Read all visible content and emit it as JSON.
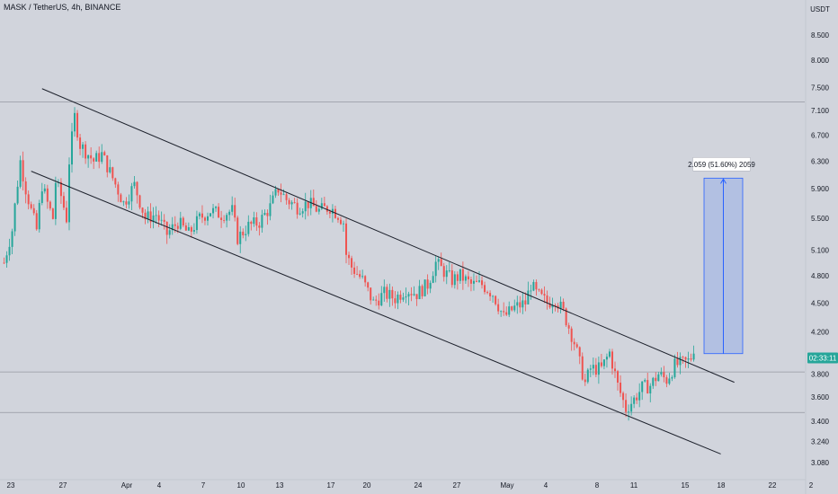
{
  "header": {
    "title": "MASK / TetherUS, 4h, BINANCE"
  },
  "colors": {
    "background": "#d1d4dc",
    "up": "#26a69a",
    "down": "#ef5350",
    "line": "#1e222d",
    "measure_fill": "#9db3e6",
    "measure_stroke": "#2962ff",
    "price_tag": "#26a69a"
  },
  "chart_data": {
    "type": "candlestick",
    "title": "MASK / TetherUS, 4h, BINANCE",
    "y_unit_label": "USDT",
    "y_scale": "log",
    "ylim": [
      3.0,
      9.0
    ],
    "y_ticks": [
      "8.500",
      "8.000",
      "7.500",
      "7.100",
      "6.700",
      "6.300",
      "5.900",
      "5.500",
      "5.100",
      "4.800",
      "4.500",
      "4.200",
      "3.800",
      "3.600",
      "3.400",
      "3.240",
      "3.080"
    ],
    "x_ticks": [
      "23",
      "27",
      "Apr",
      "4",
      "7",
      "10",
      "13",
      "17",
      "20",
      "24",
      "27",
      "May",
      "4",
      "8",
      "11",
      "15",
      "18",
      "22",
      "2"
    ],
    "current_price_label": "02:33:11",
    "current_price": 3.95,
    "horizontal_levels": [
      7.25,
      3.82,
      3.47
    ],
    "channel": {
      "upper": [
        {
          "bar": 14,
          "price": 7.48
        },
        {
          "bar": 260,
          "price": 3.82
        }
      ],
      "lower": [
        {
          "bar": 10,
          "price": 6.15
        },
        {
          "bar": 255,
          "price": 3.22
        }
      ]
    },
    "projection": {
      "label": "2.059 (51.60%) 2059",
      "from_price": 3.99,
      "to_price": 6.05,
      "change": 2.059,
      "percent": "51.60%"
    },
    "price_path": [
      [
        0,
        4.95
      ],
      [
        3,
        5.35
      ],
      [
        6,
        6.3
      ],
      [
        8,
        5.9
      ],
      [
        10,
        5.6
      ],
      [
        12,
        5.35
      ],
      [
        14,
        5.95
      ],
      [
        16,
        5.7
      ],
      [
        18,
        5.5
      ],
      [
        19,
        6.0
      ],
      [
        21,
        5.8
      ],
      [
        23,
        5.5
      ],
      [
        24,
        6.3
      ],
      [
        26,
        7.0
      ],
      [
        28,
        6.55
      ],
      [
        30,
        6.45
      ],
      [
        33,
        6.3
      ],
      [
        36,
        6.4
      ],
      [
        40,
        6.05
      ],
      [
        44,
        5.7
      ],
      [
        48,
        5.95
      ],
      [
        52,
        5.5
      ],
      [
        56,
        5.55
      ],
      [
        60,
        5.3
      ],
      [
        64,
        5.45
      ],
      [
        68,
        5.3
      ],
      [
        72,
        5.5
      ],
      [
        76,
        5.6
      ],
      [
        80,
        5.55
      ],
      [
        84,
        5.6
      ],
      [
        86,
        5.25
      ],
      [
        90,
        5.4
      ],
      [
        94,
        5.45
      ],
      [
        98,
        5.65
      ],
      [
        101,
        5.9
      ],
      [
        104,
        5.75
      ],
      [
        108,
        5.65
      ],
      [
        112,
        5.7
      ],
      [
        116,
        5.6
      ],
      [
        120,
        5.65
      ],
      [
        123,
        5.55
      ],
      [
        125,
        5.45
      ],
      [
        126,
        5.05
      ],
      [
        128,
        4.9
      ],
      [
        132,
        4.75
      ],
      [
        136,
        4.5
      ],
      [
        140,
        4.6
      ],
      [
        144,
        4.55
      ],
      [
        148,
        4.65
      ],
      [
        152,
        4.6
      ],
      [
        156,
        4.7
      ],
      [
        159,
        4.95
      ],
      [
        162,
        4.85
      ],
      [
        165,
        4.75
      ],
      [
        168,
        4.8
      ],
      [
        172,
        4.7
      ],
      [
        176,
        4.7
      ],
      [
        180,
        4.6
      ],
      [
        184,
        4.35
      ],
      [
        188,
        4.45
      ],
      [
        192,
        4.5
      ],
      [
        194,
        4.7
      ],
      [
        196,
        4.6
      ],
      [
        200,
        4.5
      ],
      [
        203,
        4.55
      ],
      [
        206,
        4.4
      ],
      [
        210,
        4.1
      ],
      [
        212,
        3.9
      ],
      [
        214,
        3.72
      ],
      [
        216,
        3.85
      ],
      [
        220,
        3.85
      ],
      [
        223,
        4.0
      ],
      [
        226,
        3.7
      ],
      [
        229,
        3.5
      ],
      [
        232,
        3.58
      ],
      [
        235,
        3.68
      ],
      [
        238,
        3.7
      ],
      [
        241,
        3.8
      ],
      [
        244,
        3.75
      ],
      [
        247,
        3.88
      ],
      [
        250,
        3.9
      ],
      [
        252,
        3.92
      ],
      [
        254,
        3.99
      ]
    ]
  }
}
